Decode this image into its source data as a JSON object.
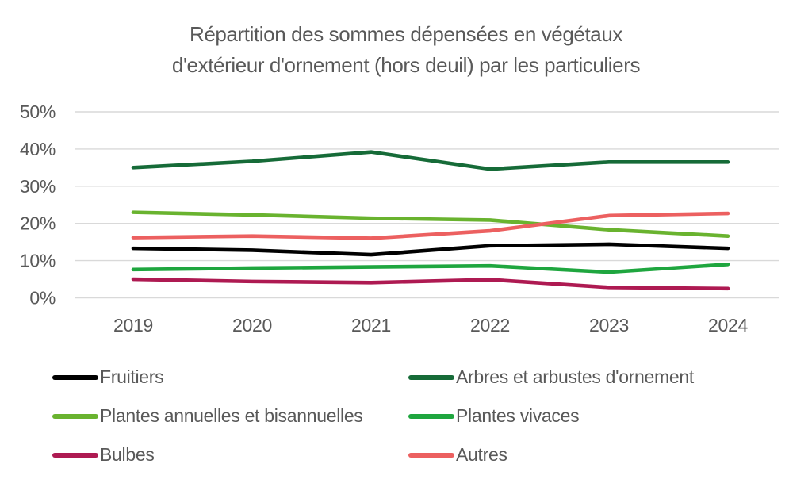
{
  "chart_data": {
    "type": "line",
    "title": "Répartition des sommes dépensées en végétaux d'extérieur d'ornement (hors deuil) par les particuliers",
    "title_lines": [
      "Répartition des sommes dépensées en végétaux",
      "d'extérieur d'ornement (hors deuil) par les particuliers"
    ],
    "x_labels": [
      "2019",
      "2020",
      "2021",
      "2022",
      "2023",
      "2024"
    ],
    "y_ticks": [
      {
        "label": "0%",
        "value": 0
      },
      {
        "label": "10%",
        "value": 10
      },
      {
        "label": "20%",
        "value": 20
      },
      {
        "label": "30%",
        "value": 30
      },
      {
        "label": "40%",
        "value": 40
      },
      {
        "label": "50%",
        "value": 50
      }
    ],
    "ylim": [
      0,
      50
    ],
    "grid": "horizontal",
    "legend_position": "bottom, two columns",
    "series": [
      {
        "name": "Fruitiers",
        "color": "#000000",
        "values": [
          13.3,
          12.8,
          11.6,
          14.0,
          14.4,
          13.3
        ]
      },
      {
        "name": "Arbres et arbustes d'ornement",
        "color": "#166B38",
        "values": [
          35.0,
          36.7,
          39.2,
          34.6,
          36.5,
          36.5
        ]
      },
      {
        "name": "Plantes annuelles et bisannuelles",
        "color": "#69B32F",
        "values": [
          23.0,
          22.3,
          21.4,
          20.9,
          18.3,
          16.6
        ]
      },
      {
        "name": "Plantes vivaces",
        "color": "#1FA63F",
        "values": [
          7.6,
          8.0,
          8.3,
          8.6,
          6.9,
          9.0
        ]
      },
      {
        "name": "Bulbes",
        "color": "#AE1A52",
        "values": [
          5.0,
          4.4,
          4.1,
          4.9,
          2.8,
          2.5
        ]
      },
      {
        "name": "Autres",
        "color": "#EC6060",
        "values": [
          16.2,
          16.6,
          16.0,
          18.0,
          22.1,
          22.7
        ]
      }
    ],
    "colors": {
      "text": "#595959",
      "gridline": "#D9D9D9",
      "background": "#FFFFFF"
    }
  }
}
